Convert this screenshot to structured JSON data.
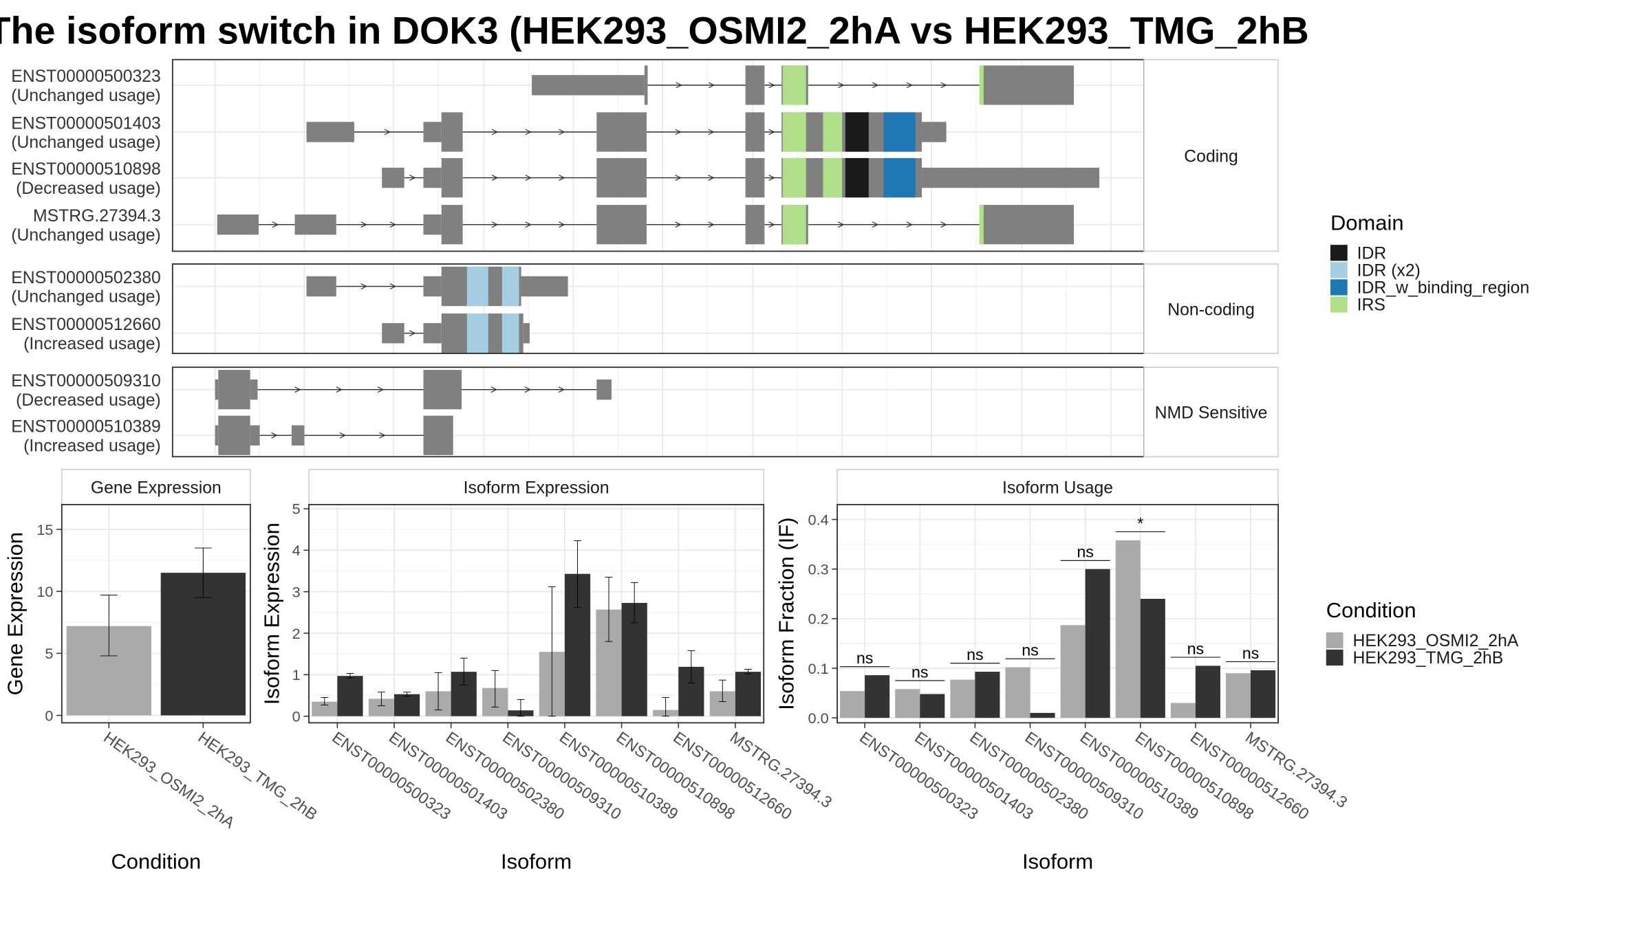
{
  "title": "The isoform switch in DOK3 (HEK293_OSMI2_2hA vs HEK293_TMG_2hB",
  "colors": {
    "exon": "#808080",
    "cond1": "#aaaaaa",
    "cond2": "#333333",
    "IDR": "#1a1a1a",
    "IDR (x2)": "#a6cee3",
    "IDR_w_binding_region": "#1f78b4",
    "IRS": "#b2df8a"
  },
  "structure": {
    "groups": [
      {
        "label": "Coding",
        "transcripts": [
          {
            "id": "ENST00000500323",
            "usage": "(Unchanged usage)",
            "exons": [
              [
                298,
                404,
                "s"
              ],
              [
                404,
                407,
                "t"
              ],
              [
                499,
                517,
                "t"
              ],
              [
                533,
                558,
                "t"
              ],
              [
                719,
                723,
                "s"
              ],
              [
                723,
                808,
                "t"
              ]
            ],
            "domains": [
              [
                534,
                556,
                "IRS"
              ],
              [
                719,
                723,
                "IRS"
              ]
            ]
          },
          {
            "id": "ENST00000501403",
            "usage": "(Unchanged usage)",
            "exons": [
              [
                86,
                131,
                "s"
              ],
              [
                196,
                213,
                "s"
              ],
              [
                213,
                233,
                "t"
              ],
              [
                359,
                406,
                "t"
              ],
              [
                499,
                517,
                "t"
              ],
              [
                533,
                665,
                "t"
              ],
              [
                665,
                688,
                "s"
              ]
            ],
            "domains": [
              [
                534,
                556,
                "IRS"
              ],
              [
                572,
                590,
                "IRS"
              ],
              [
                593,
                615,
                "IDR"
              ],
              [
                629,
                659,
                "IDR_w_binding_region"
              ]
            ]
          },
          {
            "id": "ENST00000510898",
            "usage": "(Decreased usage)",
            "exons": [
              [
                157,
                178,
                "s"
              ],
              [
                196,
                213,
                "s"
              ],
              [
                213,
                233,
                "t"
              ],
              [
                359,
                406,
                "t"
              ],
              [
                499,
                517,
                "t"
              ],
              [
                533,
                665,
                "t"
              ],
              [
                665,
                832,
                "s"
              ]
            ],
            "domains": [
              [
                534,
                556,
                "IRS"
              ],
              [
                572,
                590,
                "IRS"
              ],
              [
                593,
                615,
                "IDR"
              ],
              [
                629,
                659,
                "IDR_w_binding_region"
              ]
            ]
          },
          {
            "id": "MSTRG.27394.3",
            "usage": "(Unchanged usage)",
            "exons": [
              [
                2,
                41,
                "s"
              ],
              [
                75,
                114,
                "s"
              ],
              [
                196,
                213,
                "s"
              ],
              [
                213,
                233,
                "t"
              ],
              [
                359,
                406,
                "t"
              ],
              [
                499,
                517,
                "t"
              ],
              [
                533,
                558,
                "t"
              ],
              [
                719,
                723,
                "s"
              ],
              [
                723,
                808,
                "t"
              ]
            ],
            "domains": [
              [
                534,
                556,
                "IRS"
              ],
              [
                719,
                723,
                "IRS"
              ]
            ]
          }
        ]
      },
      {
        "label": "Non-coding",
        "transcripts": [
          {
            "id": "ENST00000502380",
            "usage": "(Unchanged usage)",
            "exons": [
              [
                86,
                114,
                "s"
              ],
              [
                196,
                213,
                "s"
              ],
              [
                213,
                288,
                "t"
              ],
              [
                288,
                332,
                "s"
              ]
            ],
            "domains": [
              [
                237,
                257,
                "IDR (x2)"
              ],
              [
                270,
                286,
                "IDR (x2)"
              ]
            ]
          },
          {
            "id": "ENST00000512660",
            "usage": "(Increased usage)",
            "exons": [
              [
                157,
                178,
                "s"
              ],
              [
                196,
                213,
                "s"
              ],
              [
                213,
                290,
                "t"
              ],
              [
                290,
                296,
                "s"
              ]
            ],
            "domains": [
              [
                237,
                257,
                "IDR (x2)"
              ],
              [
                270,
                286,
                "IDR (x2)"
              ]
            ]
          }
        ]
      },
      {
        "label": "NMD Sensitive",
        "transcripts": [
          {
            "id": "ENST00000509310",
            "usage": "(Decreased usage)",
            "exons": [
              [
                0,
                3,
                "s"
              ],
              [
                3,
                33,
                "t"
              ],
              [
                33,
                40,
                "s"
              ],
              [
                196,
                232,
                "t"
              ],
              [
                359,
                373,
                "s"
              ]
            ],
            "domains": []
          },
          {
            "id": "ENST00000510389",
            "usage": "(Increased usage)",
            "exons": [
              [
                0,
                3,
                "s"
              ],
              [
                3,
                33,
                "t"
              ],
              [
                33,
                42,
                "s"
              ],
              [
                72,
                84,
                "s"
              ],
              [
                196,
                224,
                "t"
              ]
            ],
            "domains": []
          }
        ]
      }
    ],
    "xlim": [
      -40,
      874
    ]
  },
  "legend_domain": {
    "title": "Domain",
    "items": [
      "IDR",
      "IDR (x2)",
      "IDR_w_binding_region",
      "IRS"
    ]
  },
  "legend_condition": {
    "title": "Condition",
    "items": [
      "HEK293_OSMI2_2hA",
      "HEK293_TMG_2hB"
    ]
  },
  "chart_data": [
    {
      "type": "bar",
      "title": "Gene Expression",
      "xlabel": "Condition",
      "ylabel": "Gene Expression",
      "categories": [
        "HEK293_OSMI2_2hA",
        "HEK293_TMG_2hB"
      ],
      "values": [
        7.2,
        11.5
      ],
      "error_low": [
        4.8,
        9.5
      ],
      "error_high": [
        9.7,
        13.5
      ],
      "ylim": [
        -0.6,
        17
      ],
      "yticks": [
        0,
        5,
        10,
        15
      ]
    },
    {
      "type": "bar",
      "title": "Isoform Expression",
      "xlabel": "Isoform",
      "ylabel": "Isoform Expression",
      "categories": [
        "ENST00000500323",
        "ENST00000501403",
        "ENST00000502380",
        "ENST00000509310",
        "ENST00000510389",
        "ENST00000510898",
        "ENST00000512660",
        "MSTRG.27394.3"
      ],
      "series": [
        {
          "name": "HEK293_OSMI2_2hA",
          "values": [
            0.35,
            0.42,
            0.6,
            0.68,
            1.55,
            2.57,
            0.15,
            0.6
          ],
          "error_low": [
            0.27,
            0.25,
            0.15,
            0.22,
            0.0,
            1.8,
            0.0,
            0.35
          ],
          "error_high": [
            0.45,
            0.58,
            1.05,
            1.1,
            3.12,
            3.35,
            0.45,
            0.87
          ]
        },
        {
          "name": "HEK293_TMG_2hB",
          "values": [
            0.97,
            0.53,
            1.07,
            0.14,
            3.43,
            2.73,
            1.19,
            1.07
          ],
          "error_low": [
            0.92,
            0.48,
            0.75,
            0.0,
            2.62,
            2.25,
            0.8,
            1.02
          ],
          "error_high": [
            1.03,
            0.58,
            1.4,
            0.4,
            4.23,
            3.22,
            1.58,
            1.13
          ]
        }
      ],
      "ylim": [
        -0.16,
        5.1
      ],
      "yticks": [
        0,
        1,
        2,
        3,
        4,
        5
      ]
    },
    {
      "type": "bar",
      "title": "Isoform Usage",
      "xlabel": "Isoform",
      "ylabel": "Isoform Fraction (IF)",
      "categories": [
        "ENST00000500323",
        "ENST00000501403",
        "ENST00000502380",
        "ENST00000509310",
        "ENST00000510389",
        "ENST00000510898",
        "ENST00000512660",
        "MSTRG.27394.3"
      ],
      "series": [
        {
          "name": "HEK293_OSMI2_2hA",
          "values": [
            0.054,
            0.058,
            0.077,
            0.102,
            0.187,
            0.358,
            0.03,
            0.09
          ]
        },
        {
          "name": "HEK293_TMG_2hB",
          "values": [
            0.086,
            0.048,
            0.093,
            0.01,
            0.3,
            0.24,
            0.105,
            0.096
          ]
        }
      ],
      "significance": [
        "ns",
        "ns",
        "ns",
        "ns",
        "ns",
        "*",
        "ns",
        "ns"
      ],
      "ylim": [
        -0.01,
        0.43
      ],
      "yticks": [
        "0.0",
        "0.1",
        "0.2",
        "0.3",
        "0.4"
      ]
    }
  ]
}
